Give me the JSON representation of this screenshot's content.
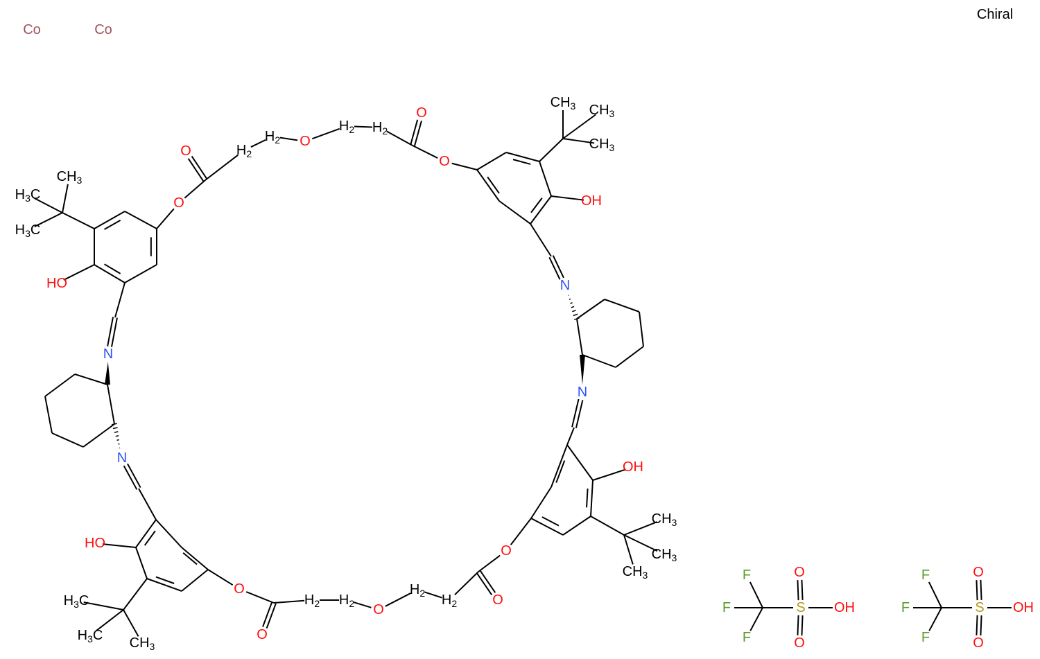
{
  "colors": {
    "carbon": "#000000",
    "oxygen": "#ff0d0d",
    "nitrogen": "#3050f8",
    "cobalt": "#a0525c",
    "sulfur": "#b29a1a",
    "fluorine": "#5a9a2e"
  },
  "header": {
    "chiral_label": "Chiral"
  },
  "metals": [
    {
      "symbol": "Co"
    },
    {
      "symbol": "Co"
    }
  ],
  "macrocycle": {
    "atoms": {
      "tm1": "CH3",
      "tm2": "H3C",
      "tm3": "H3C",
      "hoTL": "HO",
      "n1": "N",
      "o1": "O",
      "o2": "O",
      "h1": "H2",
      "h2": "H2",
      "o3": "O",
      "h3": "H2",
      "h4": "H2",
      "o4": "O",
      "o5": "O",
      "tr1": "CH3",
      "tr2": "CH3",
      "tr3": "CH3",
      "ohTR": "OH",
      "n2": "N",
      "n3": "N",
      "ohBR": "OH",
      "br1": "CH3",
      "br2": "CH3",
      "br3": "CH3",
      "o6": "O",
      "o7": "O",
      "h5": "H2",
      "h6": "H2",
      "o8": "O",
      "h7": "H2",
      "h8": "H2",
      "o9": "O",
      "o10": "O",
      "hoBL": "HO",
      "bl1": "H3C",
      "bl2": "H3C",
      "bl3": "CH3",
      "n4": "N"
    }
  },
  "counterions": [
    {
      "name": "trifluoromethanesulfonic acid",
      "atoms": {
        "f1": "F",
        "f2": "F",
        "f3": "F",
        "s": "S",
        "ot": "O",
        "ob": "O",
        "oh": "OH"
      }
    },
    {
      "name": "trifluoromethanesulfonic acid",
      "atoms": {
        "f1": "F",
        "f2": "F",
        "f3": "F",
        "s": "S",
        "ot": "O",
        "ob": "O",
        "oh": "OH"
      }
    }
  ]
}
